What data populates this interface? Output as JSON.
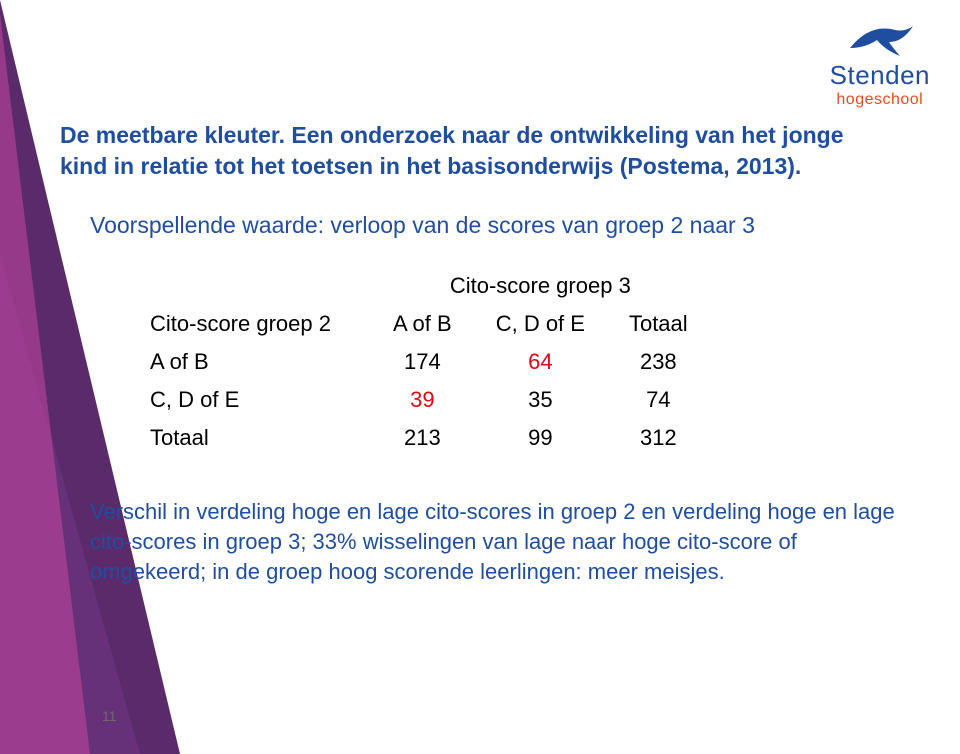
{
  "logo": {
    "name": "Stenden",
    "sub": "hogeschool",
    "brand_blue": "#1f4ea1",
    "brand_orange": "#e84e1b"
  },
  "title": {
    "line1": "De meetbare kleuter. Een onderzoek naar de ontwikkeling van het jonge",
    "line2": "kind in relatie tot het toetsen in het basisonderwijs (Postema, 2013)."
  },
  "subtitle": "Voorspellende waarde: verloop van de scores van groep 2 naar 3",
  "table": {
    "sup_header": "Cito-score groep 3",
    "row_header_label": "Cito-score groep 2",
    "col1": "A of B",
    "col2": "C, D of E",
    "col3": "Totaal",
    "rows": [
      {
        "label": "A of B",
        "v1": "174",
        "v2": "64",
        "v3": "238",
        "v1_red": false,
        "v2_red": true
      },
      {
        "label": "C, D of E",
        "v1": "39",
        "v2": "35",
        "v3": "74",
        "v1_red": true,
        "v2_red": false
      },
      {
        "label": "Totaal",
        "v1": "213",
        "v2": "99",
        "v3": "312",
        "v1_red": false,
        "v2_red": false
      }
    ],
    "red_color": "#e30613",
    "text_color": "#000000"
  },
  "paragraph": "Verschil in verdeling hoge en lage cito-scores in groep 2  en verdeling hoge en lage cito-scores in groep 3; 33% wisselingen van lage naar hoge cito-score of omgekeerd; in de groep hoog scorende leerlingen: meer meisjes.",
  "page_number": "11",
  "colors": {
    "heading_blue": "#1f4ea1",
    "background": "#ffffff",
    "triangle_main": "#5a2a6b"
  }
}
